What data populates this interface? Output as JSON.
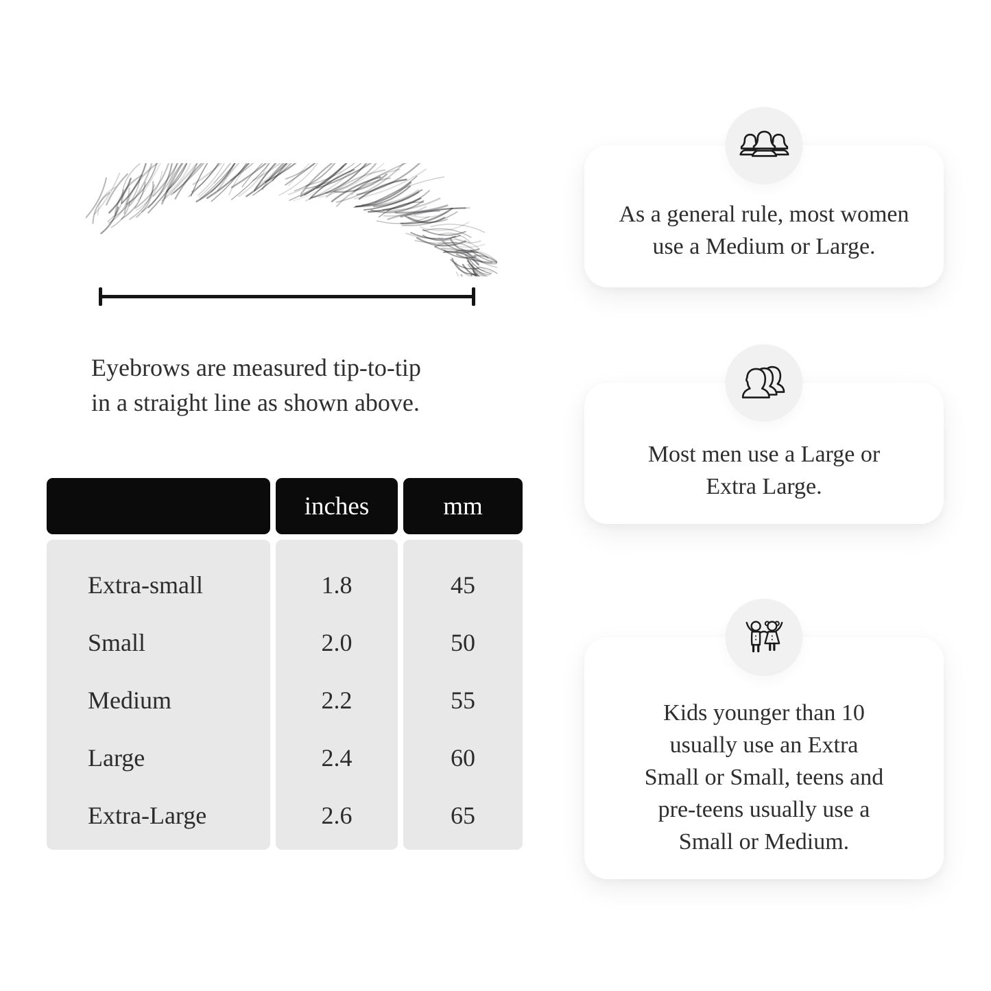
{
  "colors": {
    "background": "#ffffff",
    "table_header_bg": "#0b0b0b",
    "table_header_text": "#ffffff",
    "table_body_bg": "#e8e8e8",
    "card_bg": "#ffffff",
    "icon_circle_bg": "#f1f1f1",
    "text": "#2e2e2e",
    "measure_line": "#141414"
  },
  "measurement": {
    "caption_lines": [
      "Eyebrows are measured tip-to-tip",
      "in a straight line as shown above."
    ]
  },
  "size_table": {
    "headers": [
      "",
      "inches",
      "mm"
    ],
    "rows": [
      {
        "label": "Extra-small",
        "inches": "1.8",
        "mm": "45"
      },
      {
        "label": "Small",
        "inches": "2.0",
        "mm": "50"
      },
      {
        "label": "Medium",
        "inches": "2.2",
        "mm": "55"
      },
      {
        "label": "Large",
        "inches": "2.4",
        "mm": "60"
      },
      {
        "label": "Extra-Large",
        "inches": "2.6",
        "mm": "65"
      }
    ]
  },
  "info_cards": [
    {
      "icon": "women-group-icon",
      "lines": [
        "As a general rule, most women",
        "use a Medium or Large."
      ]
    },
    {
      "icon": "men-group-icon",
      "lines": [
        "Most men use a Large or",
        "Extra Large."
      ]
    },
    {
      "icon": "kids-icon",
      "lines": [
        "Kids younger than 10",
        "usually use an Extra",
        "Small or Small, teens and",
        "pre-teens usually use a",
        "Small or Medium."
      ]
    }
  ]
}
